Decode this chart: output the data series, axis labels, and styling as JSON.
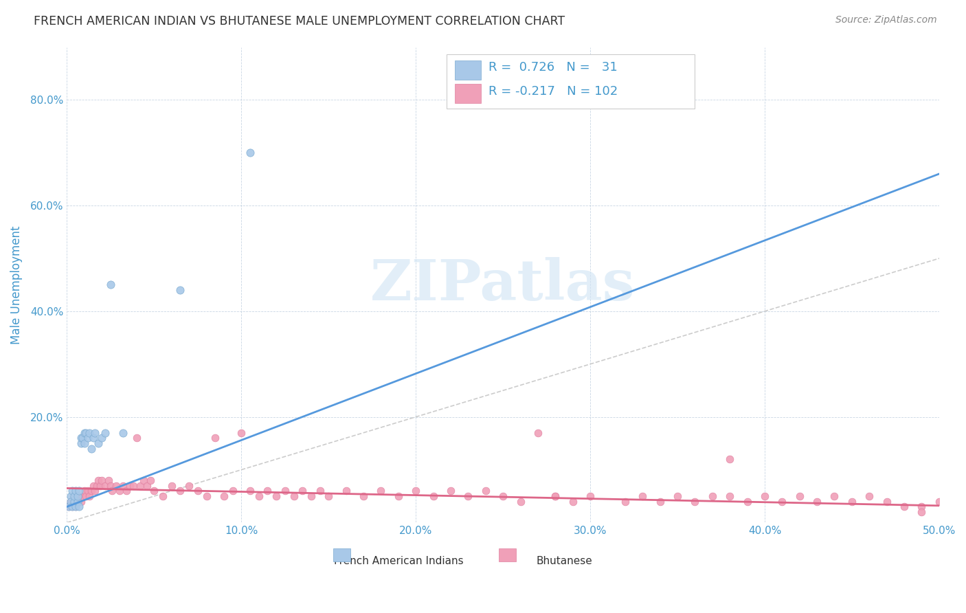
{
  "title": "FRENCH AMERICAN INDIAN VS BHUTANESE MALE UNEMPLOYMENT CORRELATION CHART",
  "source": "Source: ZipAtlas.com",
  "ylabel": "Male Unemployment",
  "xlim": [
    0.0,
    0.5
  ],
  "ylim": [
    0.0,
    0.9
  ],
  "xticks": [
    0.0,
    0.1,
    0.2,
    0.3,
    0.4,
    0.5
  ],
  "xtick_labels": [
    "0.0%",
    "10.0%",
    "20.0%",
    "30.0%",
    "40.0%",
    "50.0%"
  ],
  "yticks": [
    0.0,
    0.2,
    0.4,
    0.6,
    0.8
  ],
  "ytick_labels": [
    "",
    "20.0%",
    "40.0%",
    "60.0%",
    "80.0%"
  ],
  "blue_color": "#A8C8E8",
  "pink_color": "#F0A0B8",
  "blue_edge_color": "#7AAAD0",
  "pink_edge_color": "#E080A0",
  "blue_line_color": "#5599DD",
  "pink_line_color": "#DD6688",
  "diagonal_color": "#CCCCCC",
  "axis_color": "#4499CC",
  "text_color": "#333333",
  "watermark_color": "#D0E4F4",
  "french_x": [
    0.001,
    0.002,
    0.002,
    0.003,
    0.003,
    0.004,
    0.004,
    0.005,
    0.005,
    0.006,
    0.006,
    0.007,
    0.007,
    0.008,
    0.008,
    0.009,
    0.01,
    0.01,
    0.011,
    0.012,
    0.013,
    0.014,
    0.015,
    0.016,
    0.018,
    0.02,
    0.022,
    0.025,
    0.032,
    0.065,
    0.105
  ],
  "french_y": [
    0.03,
    0.05,
    0.04,
    0.03,
    0.06,
    0.04,
    0.05,
    0.03,
    0.06,
    0.04,
    0.05,
    0.03,
    0.06,
    0.15,
    0.16,
    0.16,
    0.17,
    0.15,
    0.17,
    0.16,
    0.17,
    0.14,
    0.16,
    0.17,
    0.15,
    0.16,
    0.17,
    0.45,
    0.17,
    0.44,
    0.7
  ],
  "bhut_x_low": [
    0.001,
    0.002,
    0.003,
    0.004,
    0.005,
    0.006,
    0.007,
    0.008,
    0.009,
    0.01,
    0.011,
    0.012,
    0.013,
    0.014,
    0.015,
    0.016,
    0.017,
    0.018,
    0.019,
    0.02,
    0.022,
    0.024,
    0.025,
    0.026,
    0.028,
    0.03,
    0.032,
    0.034,
    0.036,
    0.038,
    0.04,
    0.042,
    0.044,
    0.046,
    0.048
  ],
  "bhut_y_low": [
    0.03,
    0.04,
    0.03,
    0.05,
    0.03,
    0.04,
    0.05,
    0.04,
    0.05,
    0.06,
    0.05,
    0.06,
    0.05,
    0.06,
    0.07,
    0.06,
    0.07,
    0.08,
    0.07,
    0.08,
    0.07,
    0.08,
    0.07,
    0.06,
    0.07,
    0.06,
    0.07,
    0.06,
    0.07,
    0.07,
    0.16,
    0.07,
    0.08,
    0.07,
    0.08
  ],
  "bhut_x_mid": [
    0.05,
    0.055,
    0.06,
    0.065,
    0.07,
    0.075,
    0.08,
    0.085,
    0.09,
    0.095,
    0.1,
    0.105,
    0.11,
    0.115,
    0.12,
    0.125,
    0.13,
    0.135,
    0.14,
    0.145,
    0.15,
    0.16,
    0.17,
    0.18,
    0.19,
    0.2,
    0.21,
    0.22,
    0.23,
    0.24
  ],
  "bhut_y_mid": [
    0.06,
    0.05,
    0.07,
    0.06,
    0.07,
    0.06,
    0.05,
    0.16,
    0.05,
    0.06,
    0.17,
    0.06,
    0.05,
    0.06,
    0.05,
    0.06,
    0.05,
    0.06,
    0.05,
    0.06,
    0.05,
    0.06,
    0.05,
    0.06,
    0.05,
    0.06,
    0.05,
    0.06,
    0.05,
    0.06
  ],
  "bhut_x_high": [
    0.25,
    0.26,
    0.27,
    0.28,
    0.29,
    0.3,
    0.32,
    0.33,
    0.34,
    0.35,
    0.36,
    0.37,
    0.38,
    0.39,
    0.4,
    0.41,
    0.42,
    0.43,
    0.44,
    0.45,
    0.46,
    0.47,
    0.48,
    0.49,
    0.5,
    0.28,
    0.38,
    0.49
  ],
  "bhut_y_high": [
    0.05,
    0.04,
    0.17,
    0.05,
    0.04,
    0.05,
    0.04,
    0.05,
    0.04,
    0.05,
    0.04,
    0.05,
    0.12,
    0.04,
    0.05,
    0.04,
    0.05,
    0.04,
    0.05,
    0.04,
    0.05,
    0.04,
    0.03,
    0.03,
    0.04,
    0.05,
    0.05,
    0.02
  ],
  "blue_line_x": [
    0.0,
    0.5
  ],
  "blue_line_y": [
    0.03,
    0.66
  ],
  "pink_line_x": [
    0.0,
    0.5
  ],
  "pink_line_y": [
    0.065,
    0.032
  ]
}
